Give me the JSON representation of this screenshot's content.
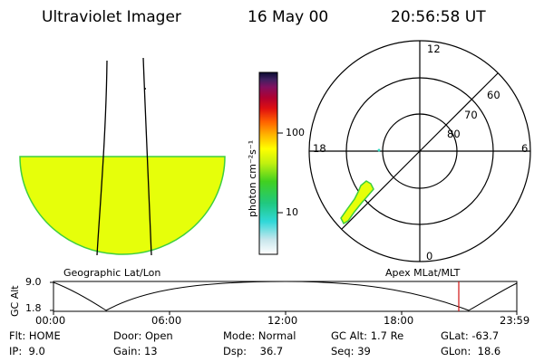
{
  "header": {
    "instrument": "Ultraviolet Imager",
    "date": "16 May 00",
    "time": "20:56:58 UT"
  },
  "colorbar": {
    "unit_label": "photon cm⁻²s⁻¹",
    "tick_labels": [
      "100",
      "10"
    ]
  },
  "polar_plot": {
    "mlt_labels": {
      "top": "12",
      "left": "18",
      "right": "6",
      "bottom": "0"
    },
    "lat_labels": [
      "60",
      "70",
      "80"
    ]
  },
  "panel_labels": {
    "left": "Geographic Lat/Lon",
    "right": "Apex MLat/MLT"
  },
  "altitude_plot": {
    "axis_title": "GC Alt",
    "y_max": "9.0",
    "y_min": "1.8",
    "time_ticks": [
      "00:00",
      "06:00",
      "12:00",
      "18:00",
      "23:59"
    ]
  },
  "info_rows": [
    [
      "Flt: HOME",
      "Door: Open",
      "Mode: Normal",
      "GC Alt: 1.7 Re",
      "GLat: -63.7"
    ],
    [
      "IP:  9.0",
      "Gain: 13",
      "Dsp:    36.7",
      "Seq: 39",
      "GLon:  18.6"
    ]
  ],
  "colors": {
    "aurora_fill": "#e6ff0a",
    "aurora_edge": "#3ecf3e",
    "cursor_line": "#d01010"
  }
}
